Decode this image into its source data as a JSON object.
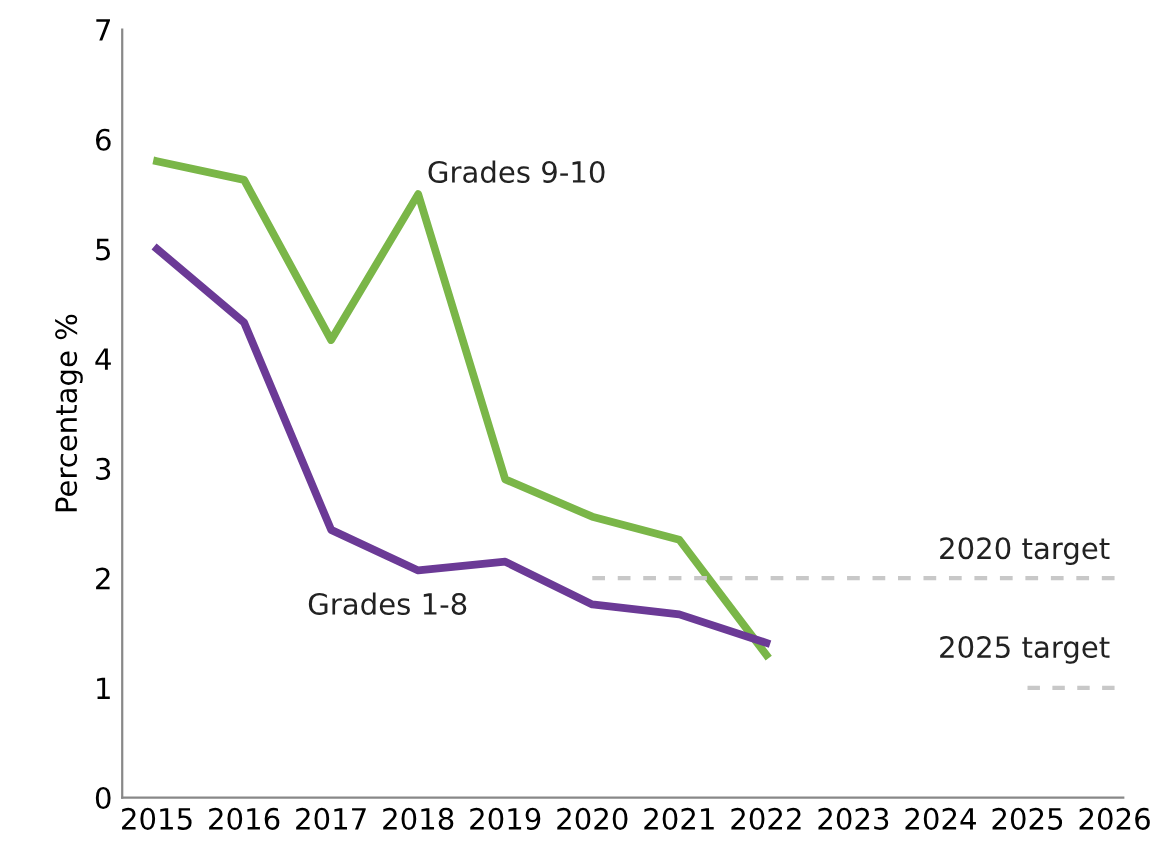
{
  "chart_data": {
    "type": "line",
    "ylabel": "Percentage %",
    "x": [
      2015,
      2016,
      2017,
      2018,
      2019,
      2020,
      2021,
      2022
    ],
    "xlim": [
      2014.6,
      2026.1
    ],
    "xticks": [
      2015,
      2016,
      2017,
      2018,
      2019,
      2020,
      2021,
      2022,
      2023,
      2024,
      2025,
      2026
    ],
    "ylim": [
      0,
      7
    ],
    "yticks": [
      0,
      1,
      2,
      3,
      4,
      5,
      6,
      7
    ],
    "grid": false,
    "legend": false,
    "marker": "none",
    "series": [
      {
        "name": "Grades 9-10",
        "color": "#7ab648",
        "values": [
          5.8,
          5.63,
          4.17,
          5.5,
          2.9,
          2.56,
          2.35,
          1.3
        ]
      },
      {
        "name": "Grades 1-8",
        "color": "#6b3a96",
        "values": [
          5.0,
          4.33,
          2.44,
          2.07,
          2.15,
          1.76,
          1.67,
          1.41
        ]
      },
      {
        "name": "2020 target",
        "color": "#c8c8c8",
        "line_style": "dashed",
        "x": [
          2020,
          2026
        ],
        "values": [
          2,
          2
        ]
      },
      {
        "name": "2025 target",
        "color": "#c8c8c8",
        "line_style": "dashed",
        "x": [
          2025,
          2026
        ],
        "values": [
          1,
          1
        ]
      }
    ]
  }
}
